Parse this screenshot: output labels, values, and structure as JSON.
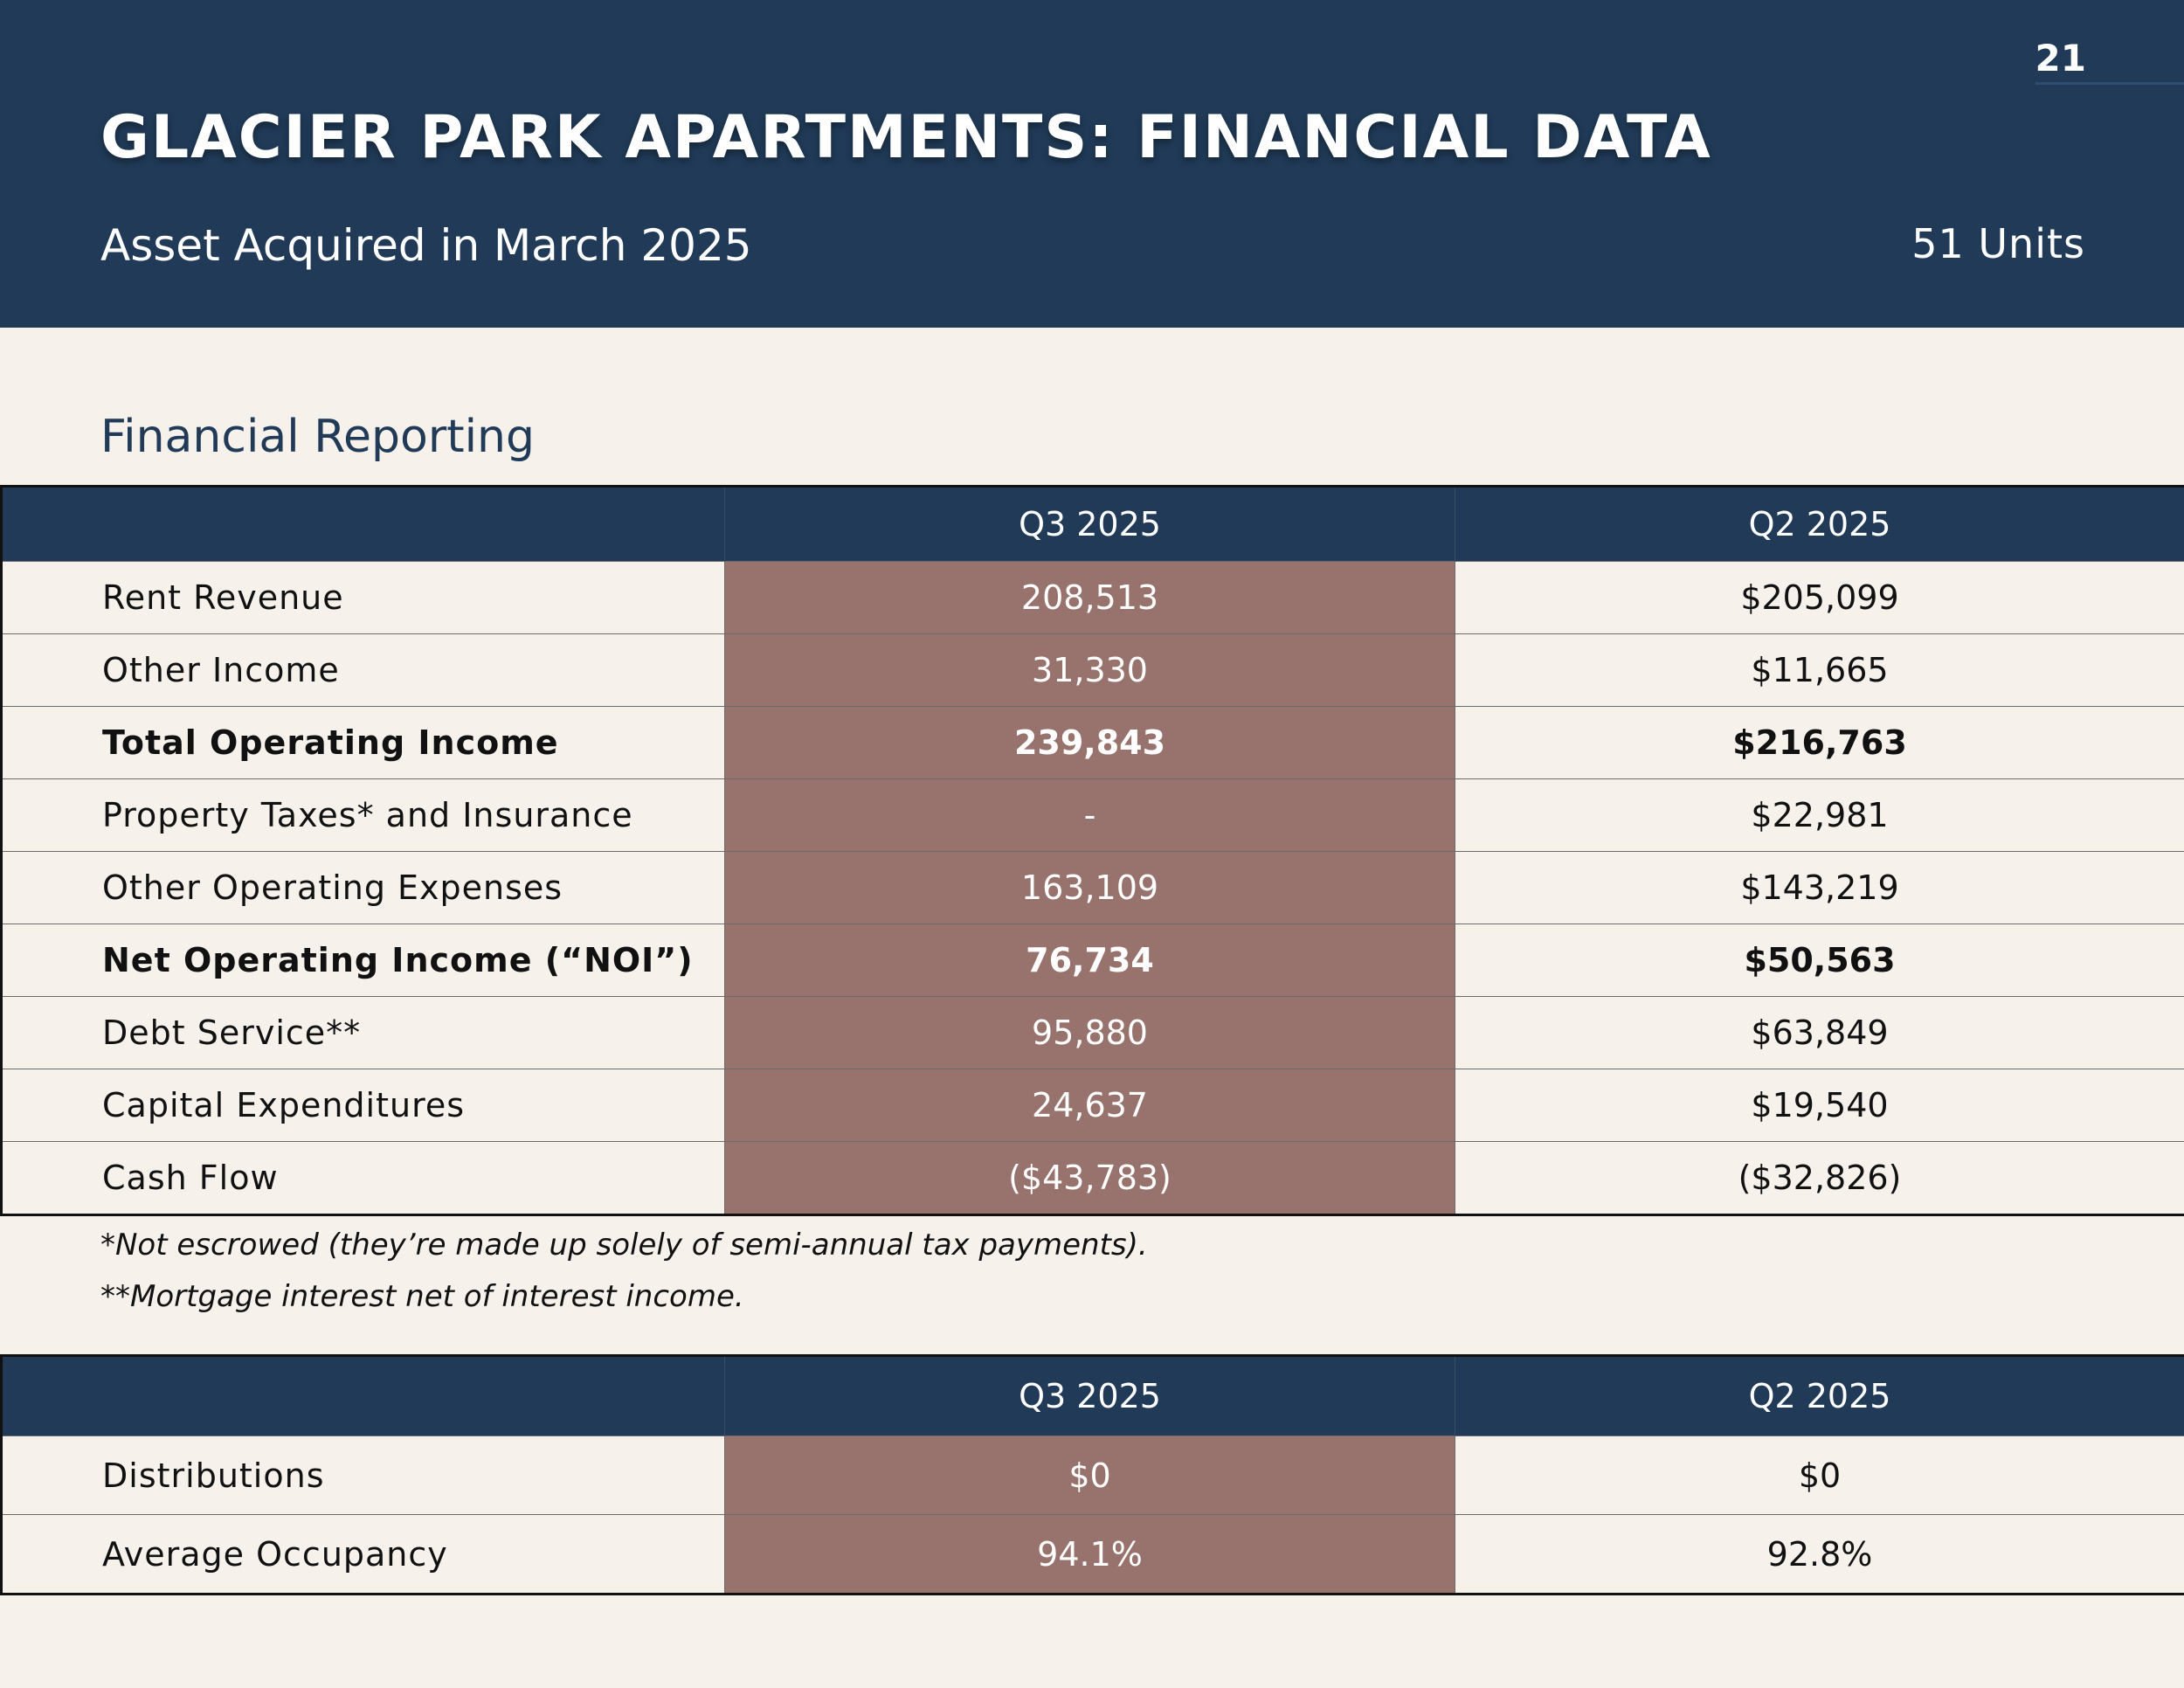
{
  "header": {
    "page_number": "21",
    "title": "GLACIER PARK APARTMENTS: FINANCIAL DATA",
    "subtitle": "Asset Acquired in March 2025",
    "units": "51 Units"
  },
  "section_title": "Financial Reporting",
  "financial_table": {
    "columns": [
      "",
      "Q3 2025",
      "Q2 2025"
    ],
    "rows": [
      {
        "label": "Rent Revenue",
        "q3": "208,513",
        "q2": "$205,099"
      },
      {
        "label": "Other Income",
        "q3": "31,330",
        "q2": "$11,665"
      },
      {
        "label": "Total Operating Income",
        "q3": "239,843",
        "q2": "$216,763"
      },
      {
        "label": "Property Taxes* and Insurance",
        "q3": "-",
        "q2": "$22,981"
      },
      {
        "label": "Other Operating Expenses",
        "q3": "163,109",
        "q2": "$143,219"
      },
      {
        "label": "Net Operating Income (“NOI”)",
        "q3": "76,734",
        "q2": "$50,563"
      },
      {
        "label": "Debt Service**",
        "q3": "95,880",
        "q2": "$63,849"
      },
      {
        "label": "Capital Expenditures",
        "q3": "24,637",
        "q2": "$19,540"
      },
      {
        "label": "Cash Flow",
        "q3": "($43,783)",
        "q2": "($32,826)"
      }
    ]
  },
  "footnotes": [
    "*Not escrowed (they’re made up solely of semi-annual tax payments).",
    "**Mortgage interest net of interest income."
  ],
  "distribution_table": {
    "columns": [
      "",
      "Q3 2025",
      "Q2 2025"
    ],
    "rows": [
      {
        "label": "Distributions",
        "q3": "$0",
        "q2": "$0"
      },
      {
        "label": "Average Occupancy",
        "q3": "94.1%",
        "q2": "92.8%"
      }
    ]
  },
  "colors": {
    "navy": "#203a57",
    "highlight": "#98736d",
    "background": "#f6f1ea"
  }
}
